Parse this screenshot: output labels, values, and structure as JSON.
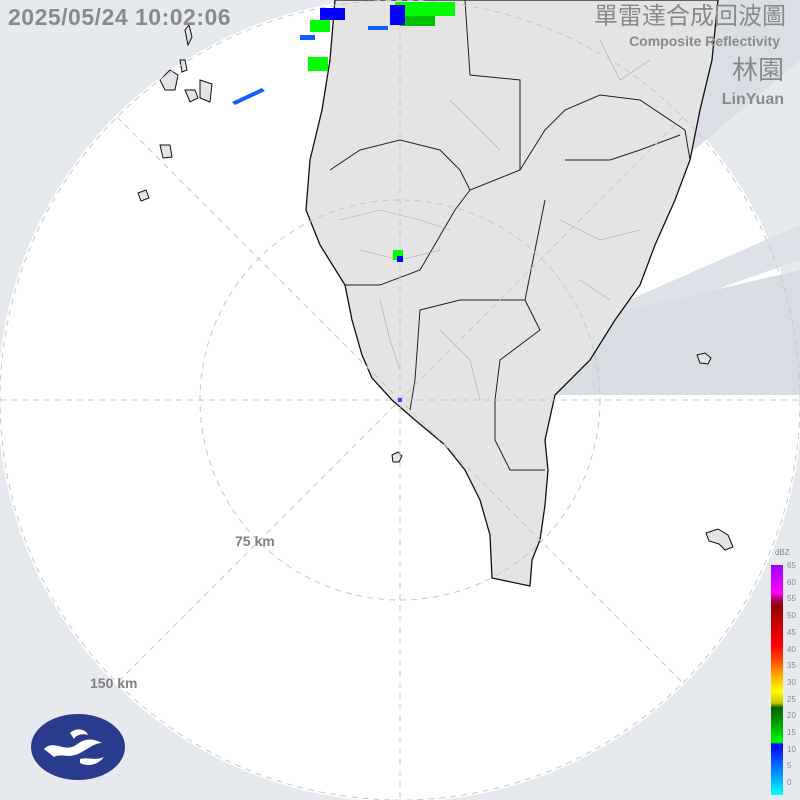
{
  "header": {
    "timestamp": "2025/05/24 10:02:06",
    "title_zh": "單雷達合成回波圖",
    "title_en": "Composite Reflectivity",
    "site_zh": "林園",
    "site_en": "LinYuan"
  },
  "rings": [
    {
      "label": "75 km"
    },
    {
      "label": "150 km"
    }
  ],
  "legend": {
    "unit": "dBZ",
    "ticks": [
      "65",
      "60",
      "55",
      "50",
      "45",
      "40",
      "35",
      "30",
      "25",
      "20",
      "15",
      "10",
      "5",
      "0"
    ]
  },
  "colors": {
    "background": "#e6eaee",
    "land": "#e8e8e8",
    "coast": "#000000",
    "logo": "#2a3a8c",
    "weak_echo": "#0000ff",
    "moderate_echo": "#00ff00"
  },
  "logo": {
    "icon": "weather-agency-logo"
  }
}
